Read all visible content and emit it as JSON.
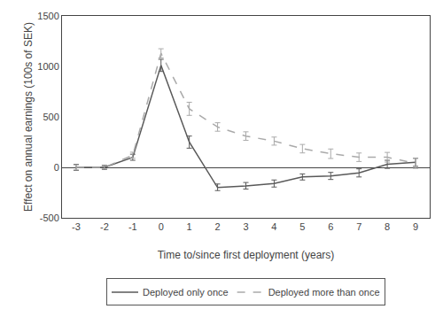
{
  "chart_data": {
    "type": "line",
    "xlabel": "Time to/since first deployment (years)",
    "ylabel": "Effect on annual earnings (100s of SEK)",
    "x": [
      -3,
      -2,
      -1,
      0,
      1,
      2,
      3,
      4,
      5,
      6,
      7,
      8,
      9
    ],
    "series": [
      {
        "name": "Deployed only once",
        "color": "#595959",
        "line_style": "solid",
        "values": [
          0,
          0,
          100,
          1010,
          250,
          -200,
          -185,
          -160,
          -95,
          -85,
          -55,
          30,
          50
        ],
        "error_lower": [
          -30,
          -20,
          70,
          950,
          190,
          -230,
          -215,
          -195,
          -125,
          -120,
          -95,
          -10,
          10
        ],
        "error_upper": [
          30,
          20,
          130,
          1070,
          310,
          -165,
          -150,
          -125,
          -65,
          -50,
          -15,
          70,
          90
        ]
      },
      {
        "name": "Deployed more than once",
        "color": "#aaaaaa",
        "line_style": "dashed",
        "values": [
          0,
          0,
          120,
          1130,
          580,
          400,
          310,
          260,
          185,
          135,
          100,
          100,
          40
        ],
        "error_lower": [
          -25,
          -15,
          90,
          1085,
          515,
          358,
          268,
          220,
          143,
          88,
          58,
          52,
          -10
        ],
        "error_upper": [
          25,
          15,
          150,
          1175,
          645,
          442,
          352,
          300,
          227,
          182,
          142,
          148,
          90
        ]
      }
    ],
    "xlim": [
      -3.5,
      9.5
    ],
    "xticks": [
      -3,
      -2,
      -1,
      0,
      1,
      2,
      3,
      4,
      5,
      6,
      7,
      8,
      9
    ],
    "ylim": [
      -500,
      1500
    ],
    "yticks": [
      -500,
      0,
      500,
      1000,
      1500
    ],
    "grid": false,
    "legend": "bottom"
  }
}
